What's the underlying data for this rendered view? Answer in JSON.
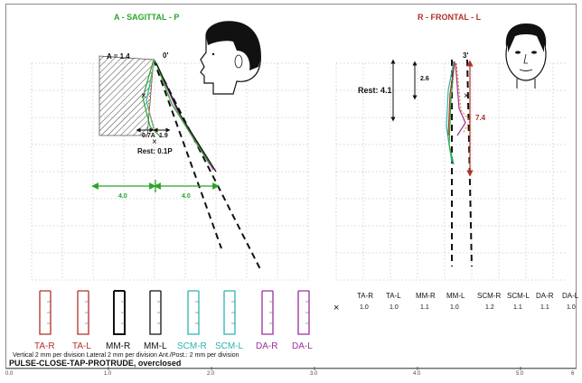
{
  "sagittal": {
    "title": "A - SAGITTAL - P",
    "a_label": "A = 1.4",
    "zero_label": "0'",
    "width_a": "0.7A",
    "width_b": "1.9",
    "rest_label": "Rest: 0.1P",
    "span_left": "4.0",
    "span_right": "4.0"
  },
  "frontal": {
    "title": "R - FRONTAL - L",
    "zero_label": "3'",
    "rest_label": "Rest: 4.1",
    "depth_label": "2.6",
    "range_label": "7.4"
  },
  "channels_left": [
    {
      "label": "TA-R",
      "color": "#b03028"
    },
    {
      "label": "TA-L",
      "color": "#b03028"
    },
    {
      "label": "MM-R",
      "color": "#111111"
    },
    {
      "label": "MM-L",
      "color": "#111111"
    },
    {
      "label": "SCM-R",
      "color": "#2bb3b0"
    },
    {
      "label": "SCM-L",
      "color": "#2bb3b0"
    },
    {
      "label": "DA-R",
      "color": "#9c2d9c"
    },
    {
      "label": "DA-L",
      "color": "#9c2d9c"
    }
  ],
  "channels_right": [
    {
      "label": "TA-R",
      "value": "1.0"
    },
    {
      "label": "TA-L",
      "value": "1.0"
    },
    {
      "label": "MM-R",
      "value": "1.1"
    },
    {
      "label": "MM-L",
      "value": "1.0"
    },
    {
      "label": "SCM-R",
      "value": "1.2"
    },
    {
      "label": "SCM-L",
      "value": "1.1"
    },
    {
      "label": "DA-R",
      "value": "1.1"
    },
    {
      "label": "DA-L",
      "value": "1.0"
    }
  ],
  "footnote": "Vertical 2 mm per division Lateral 2 mm per division Ant./Post.: 2 mm per division",
  "mode": "PULSE-CLOSE-TAP-PROTRUDE, overclosed",
  "time_axis": [
    "0.0",
    "1.0",
    "2.0",
    "3.0",
    "4.0",
    "5.0",
    "6"
  ],
  "colors": {
    "green": "#2aa52a",
    "red": "#b03028",
    "teal": "#2bb3b0",
    "purple": "#9c2d9c"
  }
}
